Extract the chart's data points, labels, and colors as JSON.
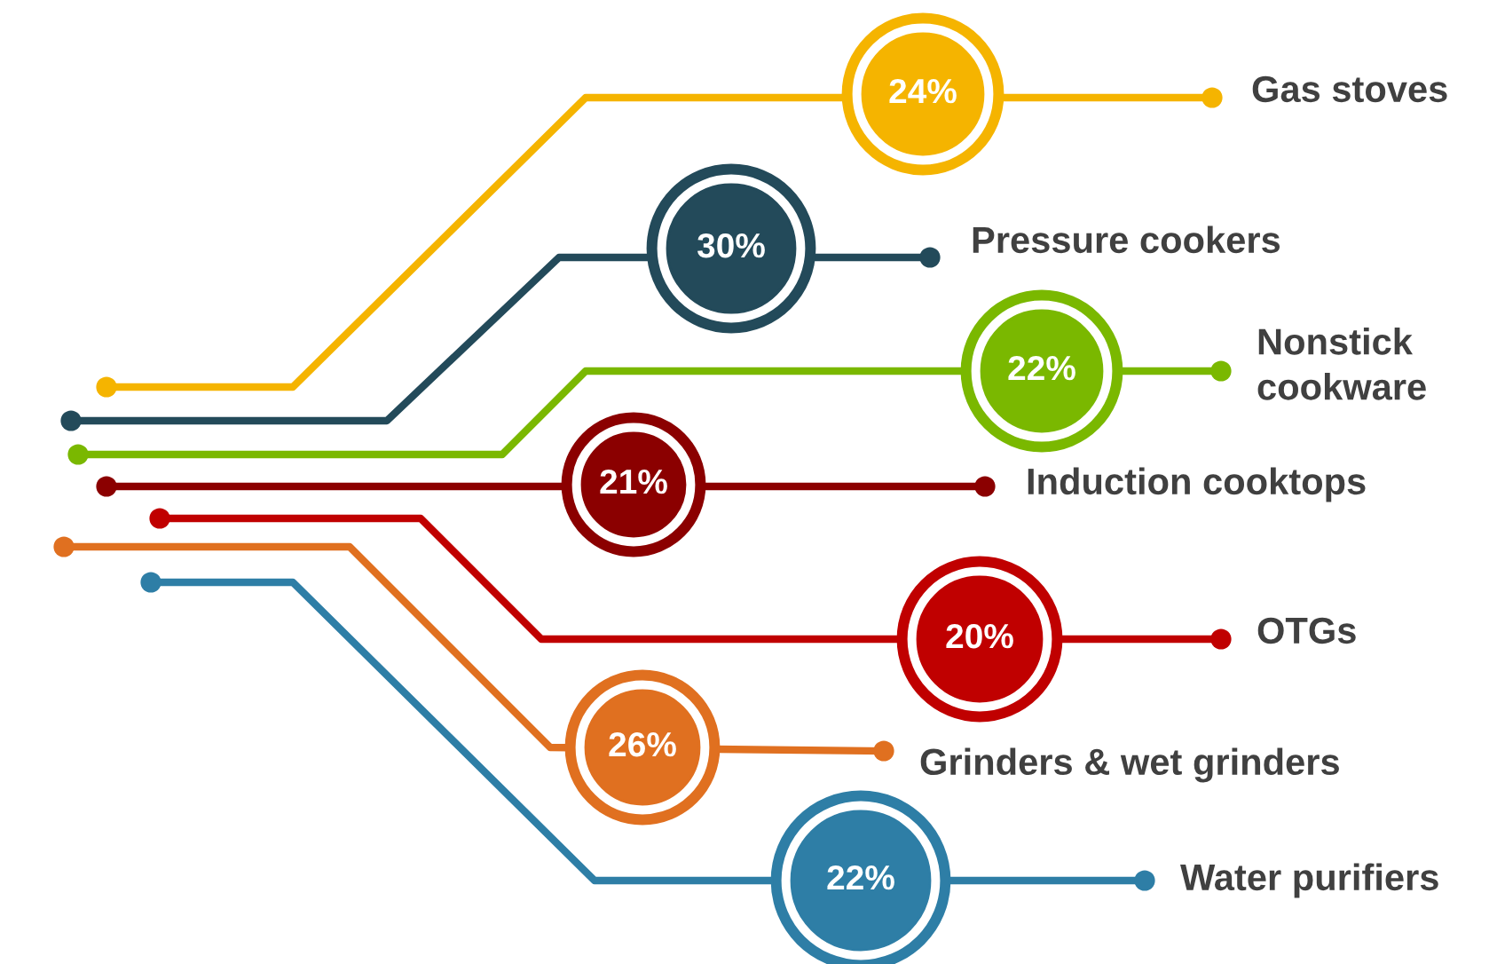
{
  "chart_data": {
    "type": "other",
    "categories": [
      "Gas stoves",
      "Pressure cookers",
      "Nonstick cookware",
      "Induction cooktops",
      "OTGs",
      "Grinders & wet grinders",
      "Water purifiers"
    ],
    "values": [
      24,
      30,
      22,
      21,
      20,
      26,
      22
    ],
    "value_labels": [
      "24%",
      "30%",
      "22%",
      "21%",
      "20%",
      "26%",
      "22%"
    ],
    "colors": [
      "#f5b400",
      "#234a5a",
      "#7ab800",
      "#8b0000",
      "#c00000",
      "#e07020",
      "#2e7ea6"
    ]
  }
}
